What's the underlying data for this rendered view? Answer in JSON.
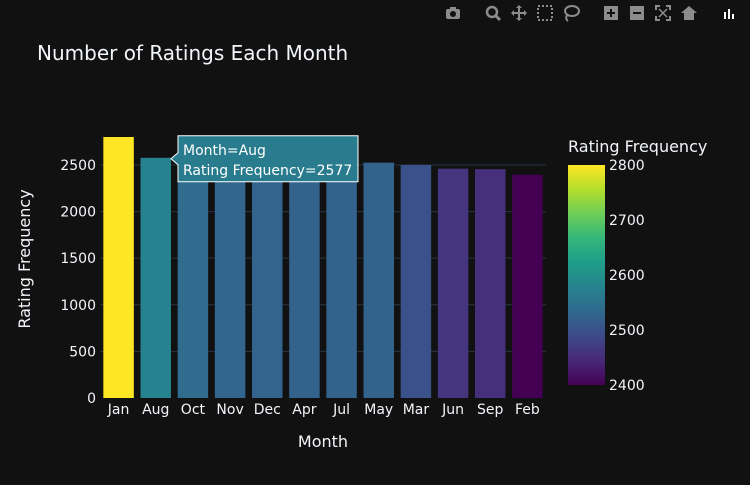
{
  "modebar": {
    "buttons": [
      "camera-icon",
      "zoom-icon",
      "pan-icon",
      "box-select-icon",
      "lasso-icon",
      "zoom-in-icon",
      "zoom-out-icon",
      "autoscale-icon",
      "reset-axes-icon",
      "plotly-logo-icon"
    ],
    "icon_color": "#8c8c8c"
  },
  "chart_data": {
    "type": "bar",
    "title": "Number of Ratings Each Month",
    "xlabel": "Month",
    "ylabel": "Rating Frequency",
    "categories": [
      "Jan",
      "Aug",
      "Oct",
      "Nov",
      "Dec",
      "Apr",
      "Jul",
      "May",
      "Mar",
      "Jun",
      "Sep",
      "Feb"
    ],
    "values": [
      2800,
      2577,
      2540,
      2530,
      2528,
      2525,
      2525,
      2525,
      2500,
      2460,
      2455,
      2395
    ],
    "ylim": [
      0,
      2800
    ],
    "yticks": [
      0,
      500,
      1000,
      1500,
      2000,
      2500
    ],
    "grid": true,
    "colorbar": {
      "title": "Rating Frequency",
      "range": [
        2400,
        2800
      ],
      "ticks": [
        2400,
        2500,
        2600,
        2700,
        2800
      ]
    },
    "tooltip": {
      "category": "Aug",
      "lines": [
        "Month=Aug",
        "Rating Frequency=2577"
      ]
    },
    "colors": {
      "background": "#111111",
      "gridline": "#283442",
      "text": "#f2f5fa",
      "tooltip_bg": "#287c8e"
    }
  }
}
